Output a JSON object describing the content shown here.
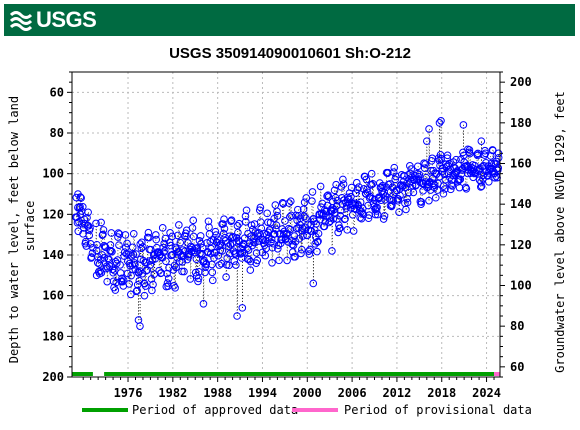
{
  "brand": {
    "name": "USGS",
    "color": "#006a41"
  },
  "chart_data": {
    "type": "scatter",
    "title": "USGS 350914090010601 Sh:O-212",
    "ylabel_left": "Depth to water level, feet below land surface",
    "ylabel_left_lines": [
      "Depth to water level, feet below land",
      "surface"
    ],
    "ylabel_right": "Groundwater level above NGVD 1929, feet",
    "xlim": [
      1968.5,
      2025.8
    ],
    "ylim_left": [
      200,
      50
    ],
    "ylim_right": [
      55,
      205
    ],
    "x_ticks": [
      1976,
      1982,
      1988,
      1994,
      2000,
      2006,
      2012,
      2018,
      2024
    ],
    "y_ticks_left": [
      60,
      80,
      100,
      120,
      140,
      160,
      180,
      200
    ],
    "y_ticks_right": [
      60,
      80,
      100,
      120,
      140,
      160,
      180,
      200
    ],
    "grid": true,
    "marker": "open-circle",
    "series_color": "#0000ff",
    "period_colors": {
      "approved": "#00a000",
      "provisional": "#ff66cc"
    },
    "legend": [
      {
        "label": "Period of approved data",
        "color": "#00a000"
      },
      {
        "label": "Period of provisional data",
        "color": "#ff66cc"
      }
    ],
    "periods": [
      {
        "kind": "approved",
        "start": 1968.5,
        "end": 1971.3
      },
      {
        "kind": "approved",
        "start": 1972.8,
        "end": 2025.0
      },
      {
        "kind": "provisional",
        "start": 2025.0,
        "end": 2025.8
      }
    ],
    "trend_anchors": [
      {
        "year": 1969.0,
        "depth": 115,
        "amplitude": 9
      },
      {
        "year": 1972.0,
        "depth": 140,
        "amplitude": 10
      },
      {
        "year": 1976.0,
        "depth": 145,
        "amplitude": 12
      },
      {
        "year": 1982.0,
        "depth": 140,
        "amplitude": 12
      },
      {
        "year": 1988.0,
        "depth": 138,
        "amplitude": 12
      },
      {
        "year": 1994.0,
        "depth": 130,
        "amplitude": 12
      },
      {
        "year": 2000.0,
        "depth": 125,
        "amplitude": 12
      },
      {
        "year": 2006.0,
        "depth": 115,
        "amplitude": 10
      },
      {
        "year": 2012.0,
        "depth": 108,
        "amplitude": 9
      },
      {
        "year": 2018.0,
        "depth": 100,
        "amplitude": 8
      },
      {
        "year": 2024.0,
        "depth": 97,
        "amplitude": 7
      },
      {
        "year": 2025.8,
        "depth": 95,
        "amplitude": 6
      }
    ],
    "samples_per_year": 14,
    "notable_points": [
      {
        "x": 1969.3,
        "y": 110
      },
      {
        "x": 1969.6,
        "y": 120
      },
      {
        "x": 1971.8,
        "y": 150
      },
      {
        "x": 1972.4,
        "y": 124
      },
      {
        "x": 1977.4,
        "y": 172
      },
      {
        "x": 1977.6,
        "y": 175
      },
      {
        "x": 1978.2,
        "y": 160
      },
      {
        "x": 1986.1,
        "y": 164
      },
      {
        "x": 1990.6,
        "y": 170
      },
      {
        "x": 1991.3,
        "y": 166
      },
      {
        "x": 2000.8,
        "y": 154
      },
      {
        "x": 2003.3,
        "y": 138
      },
      {
        "x": 2016.0,
        "y": 84
      },
      {
        "x": 2016.3,
        "y": 78
      },
      {
        "x": 2017.7,
        "y": 75
      },
      {
        "x": 2017.9,
        "y": 74
      },
      {
        "x": 2020.9,
        "y": 76
      },
      {
        "x": 2021.5,
        "y": 88
      },
      {
        "x": 2023.3,
        "y": 84
      },
      {
        "x": 2024.3,
        "y": 104
      },
      {
        "x": 2025.3,
        "y": 94
      },
      {
        "x": 2025.6,
        "y": 90
      }
    ]
  }
}
